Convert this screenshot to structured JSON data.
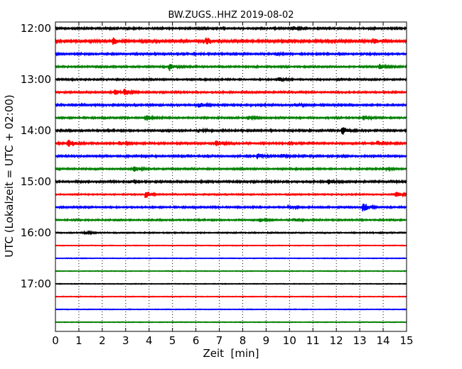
{
  "chart_data": {
    "type": "line",
    "title": "BW.ZUGS..HHZ 2019-08-02",
    "xlabel": "Zeit  [min]",
    "ylabel": "UTC (Lokalzeit = UTC + 02:00)",
    "xlim": [
      0,
      15
    ],
    "x_ticks": [
      "0",
      "1",
      "2",
      "3",
      "4",
      "5",
      "6",
      "7",
      "8",
      "9",
      "10",
      "11",
      "12",
      "13",
      "14",
      "15"
    ],
    "y_tick_labels": [
      "12:00",
      "13:00",
      "14:00",
      "15:00",
      "16:00",
      "17:00"
    ],
    "grid_x": true,
    "row_colors": [
      "#000000",
      "#ff0000",
      "#0000ff",
      "#008000"
    ],
    "rows": [
      {
        "start": "12:00",
        "noise": 1.0,
        "events": [
          {
            "t": 10.15,
            "a": 2.5
          }
        ]
      },
      {
        "start": "12:15",
        "noise": 1.3,
        "events": [
          {
            "t": 2.5,
            "a": 4
          },
          {
            "t": 6.5,
            "a": 4.5
          },
          {
            "t": 13.6,
            "a": 3
          }
        ]
      },
      {
        "start": "12:30",
        "noise": 1.0,
        "events": [
          {
            "t": 9.5,
            "a": 2
          }
        ]
      },
      {
        "start": "12:45",
        "noise": 0.9,
        "events": [
          {
            "t": 4.9,
            "a": 5
          },
          {
            "t": 13.9,
            "a": 3.5
          }
        ]
      },
      {
        "start": "13:00",
        "noise": 0.9,
        "events": [
          {
            "t": 9.6,
            "a": 2.5
          }
        ]
      },
      {
        "start": "13:15",
        "noise": 0.9,
        "events": [
          {
            "t": 2.6,
            "a": 3
          },
          {
            "t": 3.0,
            "a": 4
          }
        ]
      },
      {
        "start": "13:30",
        "noise": 1.0,
        "events": [
          {
            "t": 6.2,
            "a": 2.5
          },
          {
            "t": 10.3,
            "a": 2
          }
        ]
      },
      {
        "start": "13:45",
        "noise": 0.9,
        "events": [
          {
            "t": 3.9,
            "a": 3.5
          },
          {
            "t": 8.3,
            "a": 2
          },
          {
            "t": 13.2,
            "a": 3
          }
        ]
      },
      {
        "start": "14:00",
        "noise": 1.0,
        "events": [
          {
            "t": 6.2,
            "a": 2
          },
          {
            "t": 12.3,
            "a": 4.5
          }
        ]
      },
      {
        "start": "14:15",
        "noise": 1.0,
        "events": [
          {
            "t": 0.6,
            "a": 6
          },
          {
            "t": 2.8,
            "a": 3
          },
          {
            "t": 6.9,
            "a": 4
          },
          {
            "t": 13.8,
            "a": 3
          }
        ]
      },
      {
        "start": "14:30",
        "noise": 1.0,
        "events": [
          {
            "t": 8.7,
            "a": 3
          },
          {
            "t": 9.7,
            "a": 2.5
          }
        ]
      },
      {
        "start": "14:45",
        "noise": 0.9,
        "events": [
          {
            "t": 3.4,
            "a": 4
          },
          {
            "t": 14.2,
            "a": 2
          }
        ]
      },
      {
        "start": "15:00",
        "noise": 1.0,
        "events": [
          {
            "t": 3.2,
            "a": 2
          },
          {
            "t": 11.7,
            "a": 3
          }
        ]
      },
      {
        "start": "15:15",
        "noise": 0.7,
        "events": [
          {
            "t": 3.9,
            "a": 4.5
          },
          {
            "t": 14.6,
            "a": 3.5
          }
        ]
      },
      {
        "start": "15:30",
        "noise": 0.9,
        "events": [
          {
            "t": 10.0,
            "a": 2.5
          },
          {
            "t": 13.2,
            "a": 5.5
          }
        ]
      },
      {
        "start": "15:45",
        "noise": 0.8,
        "events": [
          {
            "t": 8.8,
            "a": 2
          },
          {
            "t": 10.2,
            "a": 2
          }
        ]
      },
      {
        "start": "16:00",
        "noise": 0.6,
        "events": [
          {
            "t": 1.3,
            "a": 2
          }
        ],
        "end_min": 15
      },
      {
        "start": "16:15",
        "noise": 0.35,
        "events": []
      },
      {
        "start": "16:30",
        "noise": 0.35,
        "events": []
      },
      {
        "start": "16:45",
        "noise": 0.35,
        "events": []
      },
      {
        "start": "17:00",
        "noise": 0.35,
        "events": []
      },
      {
        "start": "17:15",
        "noise": 0.35,
        "events": []
      },
      {
        "start": "17:30",
        "noise": 0.35,
        "events": []
      },
      {
        "start": "17:45",
        "noise": 0.35,
        "events": []
      }
    ]
  }
}
